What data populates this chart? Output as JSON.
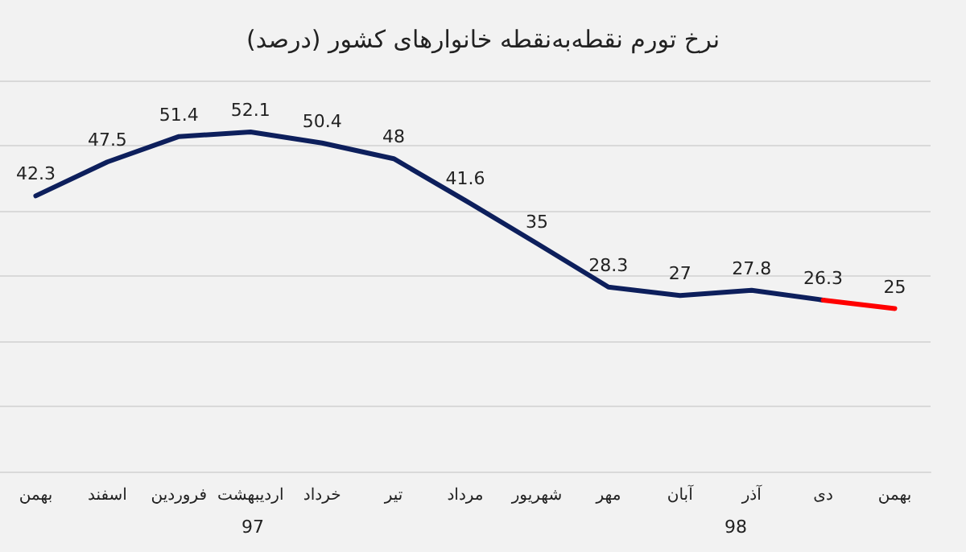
{
  "chart_data": {
    "type": "line",
    "title": "نرخ تورم نقطه‌به‌نقطه خانوارهای کشور (درصد)",
    "categories": [
      "بهمن",
      "اسفند",
      "فروردین",
      "اردیبهشت",
      "خرداد",
      "تیر",
      "مرداد",
      "شهریور",
      "مهر",
      "آبان",
      "آذر",
      "دی",
      "بهمن"
    ],
    "series": [
      {
        "color": "#0d1f5c",
        "values": [
          42.3,
          47.5,
          51.4,
          52.1,
          50.4,
          48,
          41.6,
          35,
          28.3,
          27,
          27.8,
          26.3,
          null
        ],
        "value_labels": [
          "42.3",
          "47.5",
          "51.4",
          "52.1",
          "50.4",
          "48",
          "41.6",
          "35",
          "28.3",
          "27",
          "27.8",
          "26.3",
          null
        ]
      },
      {
        "color": "#ff0000",
        "values": [
          null,
          null,
          null,
          null,
          null,
          null,
          null,
          null,
          null,
          null,
          null,
          26.3,
          25
        ],
        "value_labels": [
          null,
          null,
          null,
          null,
          null,
          null,
          null,
          null,
          null,
          null,
          null,
          null,
          "25"
        ]
      }
    ],
    "annotations": [
      "97",
      "98"
    ],
    "ylim": [
      0,
      60
    ],
    "yticks": [
      {
        "value": 0,
        "label": null
      },
      {
        "value": 10,
        "label": null
      },
      {
        "value": 20,
        "label": null
      },
      {
        "value": 30,
        "label": null
      },
      {
        "value": 40,
        "label": null
      },
      {
        "value": 50,
        "label": null
      },
      {
        "value": 60,
        "label": null
      }
    ],
    "grid": "y",
    "tick_labels": "x",
    "marker": "none",
    "line_style": "solid"
  }
}
